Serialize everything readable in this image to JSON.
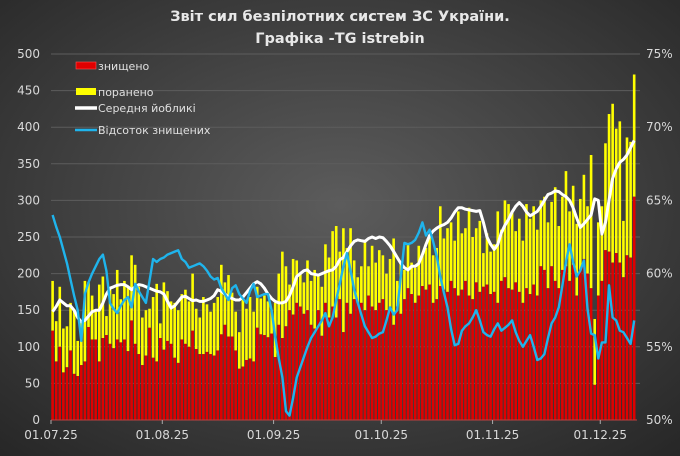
{
  "chart_data": {
    "type": "bar",
    "title": "Звіт сил безпілотних систем ЗС України.",
    "subtitle": "Графіка -TG istrebin",
    "stacked": true,
    "grid": true,
    "legend_placement": "top-left",
    "ylim": [
      0,
      500
    ],
    "y2lim": [
      50,
      75
    ],
    "y_ticks": [
      "0",
      "50",
      "100",
      "150",
      "200",
      "250",
      "300",
      "350",
      "400",
      "450",
      "500"
    ],
    "y2_ticks": [
      "50%",
      "55%",
      "60%",
      "65%",
      "70%",
      "75%"
    ],
    "x_ticks": [
      "01.07.25",
      "01.08.25",
      "01.09.25",
      "01.10.25",
      "01.11.25",
      "01.12.25"
    ],
    "x_range": [
      "01.07.25",
      "10.12.25"
    ],
    "series": [
      {
        "name": "знищено",
        "type": "bar",
        "color": "#e00000",
        "axis": "left",
        "values": [
          122,
          80,
          100,
          65,
          72,
          95,
          63,
          60,
          75,
          80,
          127,
          110,
          110,
          80,
          112,
          116,
          104,
          98,
          110,
          106,
          110,
          94,
          136,
          104,
          90,
          75,
          88,
          126,
          85,
          80,
          112,
          96,
          108,
          104,
          85,
          78,
          110,
          104,
          100,
          122,
          97,
          90,
          90,
          93,
          90,
          88,
          95,
          117,
          130,
          114,
          114,
          95,
          70,
          73,
          82,
          84,
          80,
          126,
          117,
          116,
          113,
          118,
          86,
          130,
          112,
          128,
          150,
          144,
          160,
          155,
          145,
          150,
          130,
          125,
          150,
          115,
          160,
          140,
          155,
          140,
          165,
          120,
          160,
          145,
          165,
          160,
          160,
          150,
          170,
          155,
          150,
          160,
          165,
          150,
          150,
          130,
          155,
          145,
          165,
          180,
          172,
          160,
          170,
          183,
          178,
          185,
          160,
          165,
          183,
          178,
          175,
          190,
          180,
          170,
          178,
          190,
          170,
          165,
          188,
          175,
          182,
          185,
          172,
          175,
          160,
          190,
          195,
          180,
          178,
          188,
          175,
          160,
          180,
          172,
          185,
          170,
          210,
          205,
          180,
          210,
          190,
          180,
          205,
          210,
          190,
          212,
          170,
          205,
          220,
          200,
          180,
          48,
          170,
          190,
          232,
          230,
          215,
          228,
          215,
          195,
          225,
          222,
          305
        ]
      },
      {
        "name": "поранено",
        "type": "bar",
        "color": "#ffff00",
        "axis": "left",
        "values": [
          68,
          55,
          82,
          60,
          56,
          65,
          87,
          48,
          60,
          110,
          61,
          60,
          38,
          105,
          84,
          26,
          76,
          74,
          95,
          59,
          80,
          88,
          89,
          108,
          92,
          65,
          62,
          26,
          83,
          106,
          20,
          92,
          68,
          58,
          75,
          72,
          62,
          74,
          62,
          78,
          55,
          50,
          78,
          65,
          58,
          72,
          73,
          95,
          58,
          84,
          60,
          53,
          50,
          92,
          70,
          84,
          68,
          56,
          49,
          54,
          49,
          32,
          74,
          70,
          118,
          82,
          35,
          76,
          58,
          45,
          43,
          68,
          60,
          80,
          48,
          67,
          80,
          82,
          103,
          125,
          65,
          142,
          75,
          117,
          53,
          35,
          50,
          95,
          40,
          83,
          65,
          72,
          60,
          50,
          70,
          118,
          35,
          70,
          40,
          60,
          43,
          48,
          68,
          42,
          57,
          67,
          65,
          70,
          109,
          70,
          87,
          80,
          65,
          115,
          77,
          72,
          120,
          85,
          74,
          97,
          46,
          70,
          58,
          65,
          125,
          70,
          105,
          115,
          107,
          70,
          100,
          85,
          115,
          103,
          107,
          90,
          90,
          100,
          90,
          88,
          128,
          85,
          100,
          130,
          95,
          108,
          98,
          97,
          115,
          92,
          182,
          90,
          100,
          102,
          146,
          188,
          217,
          170,
          193,
          77,
          161,
          158,
          167
        ]
      },
      {
        "name": "Середня йобликі",
        "type": "line",
        "color": "#ffffff",
        "axis": "left",
        "values": [
          148,
          155,
          164,
          160,
          156,
          156,
          150,
          140,
          134,
          136,
          142,
          148,
          150,
          150,
          160,
          172,
          180,
          182,
          184,
          185,
          185,
          182,
          178,
          182,
          185,
          184,
          182,
          180,
          178,
          176,
          175,
          172,
          162,
          153,
          156,
          162,
          168,
          169,
          166,
          163,
          164,
          162,
          162,
          164,
          166,
          170,
          178,
          176,
          172,
          168,
          166,
          164,
          164,
          168,
          174,
          180,
          186,
          189,
          186,
          180,
          172,
          166,
          162,
          160,
          160,
          162,
          170,
          182,
          196,
          200,
          204,
          205,
          200,
          199,
          198,
          200,
          202,
          204,
          205,
          210,
          219,
          222,
          230,
          238,
          244,
          246,
          245,
          244,
          248,
          250,
          248,
          250,
          249,
          244,
          238,
          230,
          222,
          214,
          208,
          205,
          210,
          210,
          214,
          226,
          240,
          252,
          258,
          262,
          265,
          267,
          270,
          276,
          284,
          290,
          290,
          288,
          287,
          286,
          285,
          286,
          270,
          250,
          240,
          233,
          240,
          256,
          266,
          274,
          284,
          292,
          297,
          292,
          284,
          279,
          282,
          285,
          292,
          300,
          308,
          310,
          313,
          312,
          308,
          305,
          300,
          290,
          276,
          263,
          268,
          274,
          280,
          302,
          300,
          254,
          270,
          300,
          330,
          343,
          352,
          356,
          362,
          372,
          382
        ]
      },
      {
        "name": "Відсоток знищених",
        "type": "line",
        "color": "#1fb4ec",
        "axis": "right",
        "values": [
          64.0,
          63.2,
          62.5,
          61.6,
          60.7,
          59.6,
          58.5,
          57.5,
          55.4,
          58.6,
          59.4,
          60.0,
          60.5,
          61.0,
          61.3,
          60.2,
          58.0,
          57.6,
          57.3,
          57.8,
          58.2,
          58.4,
          57.7,
          59.3,
          58.8,
          58.4,
          58.0,
          59.5,
          61.0,
          60.8,
          61.0,
          61.1,
          61.3,
          61.4,
          61.5,
          61.6,
          61.0,
          60.8,
          60.4,
          60.5,
          60.6,
          60.7,
          60.5,
          60.2,
          59.8,
          59.6,
          59.7,
          59.0,
          58.6,
          58.2,
          59.0,
          59.2,
          58.6,
          58.3,
          58.0,
          58.8,
          59.3,
          58.4,
          58.5,
          58.6,
          58.6,
          57.5,
          55.7,
          54.2,
          52.9,
          50.6,
          50.3,
          51.5,
          52.9,
          53.6,
          54.3,
          55.0,
          55.6,
          56.0,
          56.4,
          56.8,
          57.3,
          56.4,
          57.0,
          58.2,
          59.3,
          60.5,
          61.4,
          60.2,
          58.9,
          58.0,
          57.2,
          56.4,
          56.0,
          55.6,
          55.7,
          55.9,
          56.0,
          56.8,
          57.7,
          57.2,
          57.5,
          59.8,
          62.1,
          62.0,
          62.1,
          62.3,
          62.8,
          63.5,
          62.6,
          63.0,
          62.2,
          61.2,
          59.8,
          58.7,
          57.7,
          56.2,
          55.1,
          55.2,
          56.1,
          56.4,
          56.6,
          57.0,
          57.5,
          56.8,
          56.0,
          55.8,
          55.7,
          56.2,
          56.6,
          56.1,
          56.3,
          56.5,
          56.8,
          56.0,
          55.4,
          55.0,
          55.4,
          55.8,
          55.0,
          54.1,
          54.2,
          54.5,
          55.6,
          56.6,
          57.0,
          57.7,
          59.2,
          60.8,
          62.0,
          60.8,
          59.8,
          60.2,
          60.9,
          57.6,
          55.9,
          55.8,
          54.2,
          55.3,
          55.3,
          59.2,
          57.0,
          56.8,
          56.1,
          56.0,
          55.6,
          55.2,
          56.8
        ]
      }
    ]
  }
}
